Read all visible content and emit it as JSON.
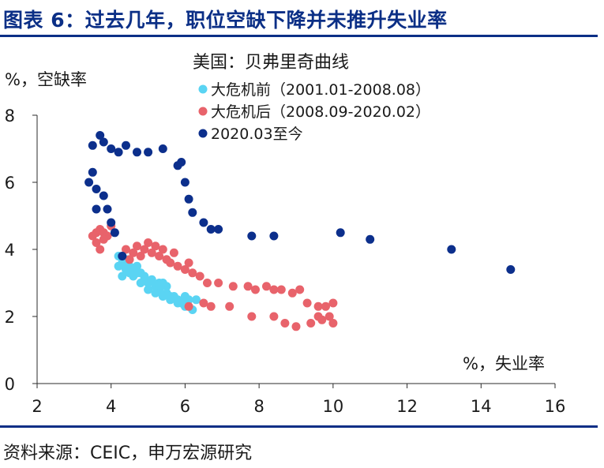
{
  "header": {
    "title": "图表 6：过去几年，职位空缺下降并未推升失业率"
  },
  "footer": {
    "source": "资料来源：CEIC，申万宏源研究"
  },
  "colors": {
    "before": "#5ad4f3",
    "after": "#e8636b",
    "recent": "#0c2f8c",
    "accent": "#0b2f86"
  },
  "chart_data": {
    "type": "scatter",
    "title": "美国：贝弗里奇曲线",
    "xlabel": "%，失业率",
    "ylabel": "%，空缺率",
    "xlim": [
      2,
      16
    ],
    "ylim": [
      0,
      8
    ],
    "xticks": [
      "2",
      "4",
      "6",
      "8",
      "10",
      "12",
      "14",
      "16"
    ],
    "yticks": [
      "0",
      "2",
      "4",
      "6",
      "8"
    ],
    "legend_position": "top",
    "series": [
      {
        "name": "大危机前（2001.01-2008.08）",
        "color": "#5ad4f3",
        "points": [
          [
            4.2,
            3.8
          ],
          [
            4.3,
            3.6
          ],
          [
            4.4,
            3.7
          ],
          [
            4.5,
            3.5
          ],
          [
            4.6,
            3.4
          ],
          [
            4.8,
            3.3
          ],
          [
            4.9,
            3.1
          ],
          [
            5.0,
            3.0
          ],
          [
            5.2,
            2.9
          ],
          [
            5.3,
            2.8
          ],
          [
            5.5,
            2.7
          ],
          [
            5.6,
            2.6
          ],
          [
            5.8,
            2.5
          ],
          [
            5.9,
            2.4
          ],
          [
            6.0,
            2.3
          ],
          [
            6.1,
            2.5
          ],
          [
            6.2,
            2.2
          ],
          [
            6.3,
            2.5
          ],
          [
            5.7,
            2.6
          ],
          [
            5.5,
            2.9
          ],
          [
            5.4,
            3.0
          ],
          [
            5.1,
            3.1
          ],
          [
            4.9,
            3.2
          ],
          [
            4.7,
            3.3
          ],
          [
            4.6,
            3.2
          ],
          [
            4.5,
            3.3
          ],
          [
            4.3,
            3.2
          ],
          [
            4.2,
            3.5
          ],
          [
            4.4,
            3.4
          ],
          [
            4.7,
            3.5
          ],
          [
            5.0,
            2.8
          ],
          [
            5.2,
            2.7
          ],
          [
            5.4,
            2.6
          ],
          [
            5.6,
            2.5
          ],
          [
            5.8,
            2.4
          ],
          [
            6.0,
            2.6
          ],
          [
            5.3,
            3.0
          ],
          [
            4.8,
            3.0
          ]
        ]
      },
      {
        "name": "大危机后（2008.09-2020.02）",
        "color": "#e8636b",
        "points": [
          [
            3.5,
            4.4
          ],
          [
            3.6,
            4.5
          ],
          [
            3.7,
            4.6
          ],
          [
            3.8,
            4.5
          ],
          [
            3.9,
            4.4
          ],
          [
            4.0,
            4.7
          ],
          [
            3.6,
            4.2
          ],
          [
            3.7,
            4.0
          ],
          [
            3.8,
            4.3
          ],
          [
            4.4,
            4.0
          ],
          [
            4.6,
            3.9
          ],
          [
            4.7,
            4.1
          ],
          [
            4.9,
            4.0
          ],
          [
            5.1,
            3.9
          ],
          [
            5.3,
            3.8
          ],
          [
            5.5,
            3.7
          ],
          [
            5.6,
            3.6
          ],
          [
            5.8,
            3.5
          ],
          [
            6.0,
            3.4
          ],
          [
            6.2,
            3.3
          ],
          [
            6.4,
            3.2
          ],
          [
            5.0,
            4.2
          ],
          [
            4.8,
            3.8
          ],
          [
            5.2,
            4.1
          ],
          [
            5.4,
            4.0
          ],
          [
            5.7,
            3.9
          ],
          [
            6.1,
            3.6
          ],
          [
            4.5,
            3.7
          ],
          [
            6.6,
            3.0
          ],
          [
            6.9,
            3.0
          ],
          [
            7.3,
            2.9
          ],
          [
            7.7,
            2.9
          ],
          [
            7.9,
            2.8
          ],
          [
            8.2,
            2.9
          ],
          [
            8.4,
            2.8
          ],
          [
            8.6,
            2.8
          ],
          [
            8.9,
            2.7
          ],
          [
            9.1,
            2.8
          ],
          [
            9.3,
            2.4
          ],
          [
            9.6,
            2.3
          ],
          [
            9.8,
            2.3
          ],
          [
            10.0,
            2.4
          ],
          [
            9.6,
            2.0
          ],
          [
            9.4,
            1.8
          ],
          [
            9.7,
            1.9
          ],
          [
            9.9,
            2.0
          ],
          [
            10.0,
            1.8
          ],
          [
            9.0,
            1.7
          ],
          [
            8.7,
            1.8
          ],
          [
            8.4,
            2.0
          ],
          [
            7.8,
            2.0
          ],
          [
            7.2,
            2.3
          ],
          [
            6.7,
            2.3
          ],
          [
            6.1,
            2.3
          ],
          [
            6.5,
            2.4
          ]
        ]
      },
      {
        "name": "2020.03至今",
        "color": "#0c2f8c",
        "points": [
          [
            3.5,
            7.1
          ],
          [
            3.7,
            7.4
          ],
          [
            3.8,
            7.2
          ],
          [
            4.0,
            7.0
          ],
          [
            4.2,
            6.9
          ],
          [
            4.4,
            7.1
          ],
          [
            4.7,
            6.9
          ],
          [
            5.0,
            6.9
          ],
          [
            5.4,
            7.0
          ],
          [
            5.8,
            6.5
          ],
          [
            5.9,
            6.6
          ],
          [
            6.0,
            6.0
          ],
          [
            6.1,
            5.5
          ],
          [
            6.2,
            5.1
          ],
          [
            6.5,
            4.8
          ],
          [
            6.7,
            4.6
          ],
          [
            6.9,
            4.6
          ],
          [
            7.8,
            4.4
          ],
          [
            8.4,
            4.4
          ],
          [
            10.2,
            4.5
          ],
          [
            11.0,
            4.3
          ],
          [
            13.2,
            4.0
          ],
          [
            14.8,
            3.4
          ],
          [
            3.4,
            6.0
          ],
          [
            3.5,
            6.3
          ],
          [
            3.6,
            5.8
          ],
          [
            3.8,
            5.6
          ],
          [
            3.9,
            5.2
          ],
          [
            4.0,
            4.8
          ],
          [
            4.1,
            4.5
          ],
          [
            4.3,
            3.8
          ],
          [
            3.6,
            5.2
          ]
        ]
      }
    ]
  }
}
